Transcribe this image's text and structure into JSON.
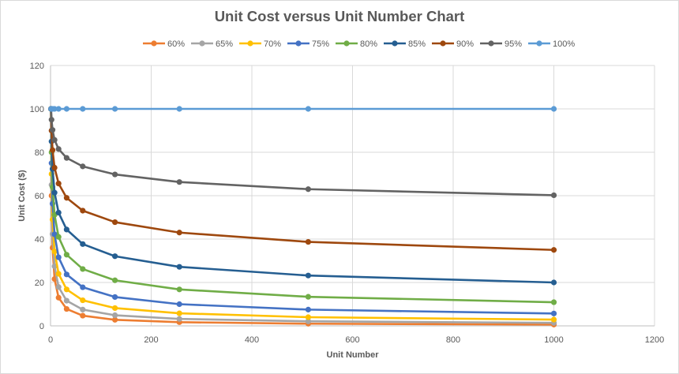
{
  "chart_data": {
    "type": "line",
    "title": "Unit Cost versus Unit Number Chart",
    "xlabel": "Unit Number",
    "ylabel": "Unit Cost ($)",
    "xlim": [
      0,
      1200
    ],
    "ylim": [
      0,
      120
    ],
    "xticks": [
      "0",
      "200",
      "400",
      "600",
      "800",
      "1000",
      "1200"
    ],
    "yticks": [
      "0",
      "20",
      "40",
      "60",
      "80",
      "100",
      "120"
    ],
    "grid": true,
    "legend_position": "top",
    "x": [
      1,
      2,
      4,
      8,
      16,
      32,
      64,
      128,
      256,
      512,
      1000
    ],
    "series": [
      {
        "name": "60%",
        "color": "#ED7D31",
        "values": [
          100,
          60,
          36,
          21.6,
          13,
          7.8,
          4.7,
          2.8,
          1.7,
          1.0,
          0.6
        ]
      },
      {
        "name": "65%",
        "color": "#A5A5A5",
        "values": [
          100,
          65,
          42.3,
          27.5,
          17.9,
          11.6,
          7.5,
          4.9,
          3.2,
          2.1,
          1.4
        ]
      },
      {
        "name": "70%",
        "color": "#FFC000",
        "values": [
          100,
          70,
          49,
          34.3,
          24,
          16.8,
          11.8,
          8.2,
          5.8,
          4.0,
          2.9
        ]
      },
      {
        "name": "75%",
        "color": "#4472C4",
        "values": [
          100,
          75,
          56.3,
          42.2,
          31.6,
          23.7,
          17.8,
          13.3,
          10,
          7.5,
          5.7
        ]
      },
      {
        "name": "80%",
        "color": "#70AD47",
        "values": [
          100,
          80,
          64,
          51.2,
          41,
          32.8,
          26.2,
          21,
          16.8,
          13.4,
          10.9
        ]
      },
      {
        "name": "85%",
        "color": "#255E91",
        "values": [
          100,
          85,
          72.3,
          61.4,
          52.2,
          44.4,
          37.7,
          32.1,
          27.2,
          23.2,
          20
        ]
      },
      {
        "name": "90%",
        "color": "#9E480E",
        "values": [
          100,
          90,
          81,
          72.9,
          65.6,
          59,
          53.1,
          47.8,
          43,
          38.7,
          35
        ]
      },
      {
        "name": "95%",
        "color": "#636363",
        "values": [
          100,
          95,
          90.3,
          85.7,
          81.5,
          77.4,
          73.5,
          69.8,
          66.3,
          63,
          60.2
        ]
      },
      {
        "name": "100%",
        "color": "#5B9BD5",
        "values": [
          100,
          100,
          100,
          100,
          100,
          100,
          100,
          100,
          100,
          100,
          100
        ]
      }
    ]
  }
}
